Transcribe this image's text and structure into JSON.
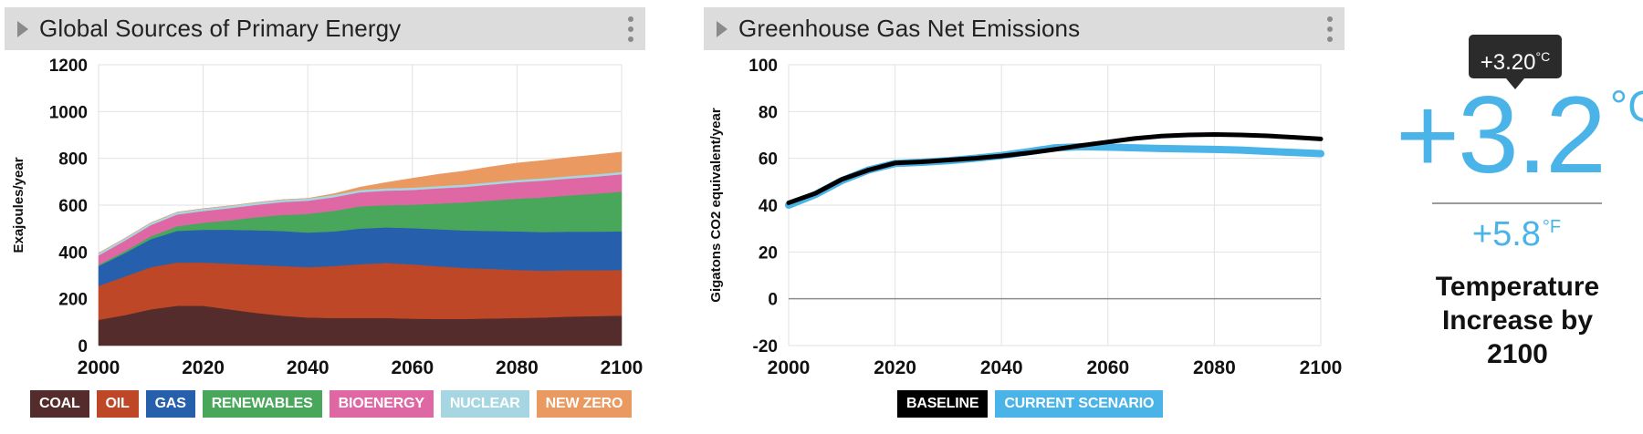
{
  "energy_panel": {
    "title": "Global Sources of Primary Energy",
    "legend": [
      {
        "label": "COAL",
        "color": "#552c2c"
      },
      {
        "label": "OIL",
        "color": "#bd4726"
      },
      {
        "label": "GAS",
        "color": "#2660ac"
      },
      {
        "label": "RENEWABLES",
        "color": "#49a75b"
      },
      {
        "label": "BIOENERGY",
        "color": "#df67a4"
      },
      {
        "label": "NUCLEAR",
        "color": "#a6d6e1"
      },
      {
        "label": "NEW ZERO",
        "color": "#ea9a60"
      }
    ]
  },
  "ghg_panel": {
    "title": "Greenhouse Gas Net Emissions",
    "legend": [
      {
        "label": "BASELINE",
        "color": "#000000"
      },
      {
        "label": "CURRENT SCENARIO",
        "color": "#4ab3e8"
      }
    ]
  },
  "temperature": {
    "tooltip_value": "+3.20",
    "tooltip_unit": "°C",
    "celsius_value": "+3.2",
    "celsius_unit": "°C",
    "fahrenheit_value": "+5.8",
    "fahrenheit_unit": "°F",
    "label": "Temperature Increase by 2100"
  },
  "chart_data": [
    {
      "type": "area",
      "stacked": true,
      "title": "Global Sources of Primary Energy",
      "xlabel": "",
      "ylabel": "Exajoules/year",
      "xlim": [
        2000,
        2100
      ],
      "ylim": [
        0,
        1200
      ],
      "xticks": [
        2000,
        2020,
        2040,
        2060,
        2080,
        2100
      ],
      "yticks": [
        0,
        200,
        400,
        600,
        800,
        1000,
        1200
      ],
      "grid": true,
      "x": [
        2000,
        2005,
        2010,
        2015,
        2020,
        2025,
        2030,
        2035,
        2040,
        2045,
        2050,
        2055,
        2060,
        2065,
        2070,
        2075,
        2080,
        2085,
        2090,
        2095,
        2100
      ],
      "series": [
        {
          "name": "COAL",
          "color": "#552c2c",
          "values": [
            110,
            130,
            155,
            170,
            170,
            155,
            140,
            128,
            120,
            118,
            118,
            118,
            115,
            114,
            114,
            116,
            118,
            120,
            124,
            126,
            128
          ]
        },
        {
          "name": "OIL",
          "color": "#bd4726",
          "values": [
            145,
            165,
            180,
            185,
            185,
            195,
            205,
            212,
            215,
            222,
            230,
            235,
            232,
            225,
            218,
            212,
            205,
            200,
            198,
            196,
            195
          ]
        },
        {
          "name": "GAS",
          "color": "#2660ac",
          "values": [
            85,
            100,
            120,
            135,
            140,
            145,
            148,
            150,
            148,
            148,
            152,
            152,
            155,
            158,
            160,
            162,
            165,
            165,
            165,
            165,
            165
          ]
        },
        {
          "name": "RENEWABLES",
          "color": "#49a75b",
          "values": [
            5,
            8,
            12,
            20,
            30,
            40,
            55,
            68,
            80,
            88,
            95,
            95,
            100,
            110,
            120,
            130,
            140,
            148,
            155,
            162,
            170
          ]
        },
        {
          "name": "BIOENERGY",
          "color": "#df67a4",
          "values": [
            40,
            45,
            48,
            50,
            50,
            52,
            53,
            55,
            56,
            58,
            60,
            62,
            63,
            65,
            66,
            68,
            70,
            72,
            72,
            73,
            74
          ]
        },
        {
          "name": "NUCLEAR",
          "color": "#a6d6e1",
          "values": [
            10,
            10,
            10,
            10,
            10,
            10,
            10,
            10,
            10,
            10,
            10,
            10,
            10,
            10,
            10,
            10,
            10,
            10,
            10,
            10,
            10
          ]
        },
        {
          "name": "NEW ZERO",
          "color": "#ea9a60",
          "values": [
            0,
            0,
            0,
            0,
            0,
            0,
            0,
            0,
            0,
            5,
            12,
            25,
            40,
            50,
            58,
            66,
            72,
            76,
            80,
            83,
            85
          ]
        }
      ]
    },
    {
      "type": "line",
      "title": "Greenhouse Gas Net Emissions",
      "xlabel": "",
      "ylabel": "Gigatons CO2 equivalent/year",
      "xlim": [
        2000,
        2100
      ],
      "ylim": [
        -20,
        100
      ],
      "xticks": [
        2000,
        2020,
        2040,
        2060,
        2080,
        2100
      ],
      "yticks": [
        -20,
        0,
        20,
        40,
        60,
        80,
        100
      ],
      "grid": true,
      "zero_line": true,
      "x": [
        2000,
        2005,
        2010,
        2015,
        2020,
        2025,
        2030,
        2035,
        2040,
        2045,
        2050,
        2055,
        2060,
        2065,
        2070,
        2075,
        2080,
        2085,
        2090,
        2095,
        2100
      ],
      "series": [
        {
          "name": "BASELINE",
          "color": "#000000",
          "values": [
            41,
            45,
            51,
            55,
            58,
            58.5,
            59.3,
            60,
            61,
            62.3,
            63.8,
            65.5,
            67,
            68.5,
            69.5,
            70,
            70.2,
            70,
            69.6,
            69,
            68.3
          ]
        },
        {
          "name": "CURRENT SCENARIO",
          "color": "#4ab3e8",
          "values": [
            40,
            44.5,
            50.5,
            55,
            57.8,
            58.3,
            59,
            60,
            61.2,
            62.8,
            64.5,
            65,
            64.8,
            64.5,
            64.2,
            64,
            63.8,
            63.5,
            63,
            62.5,
            62
          ]
        }
      ]
    }
  ]
}
